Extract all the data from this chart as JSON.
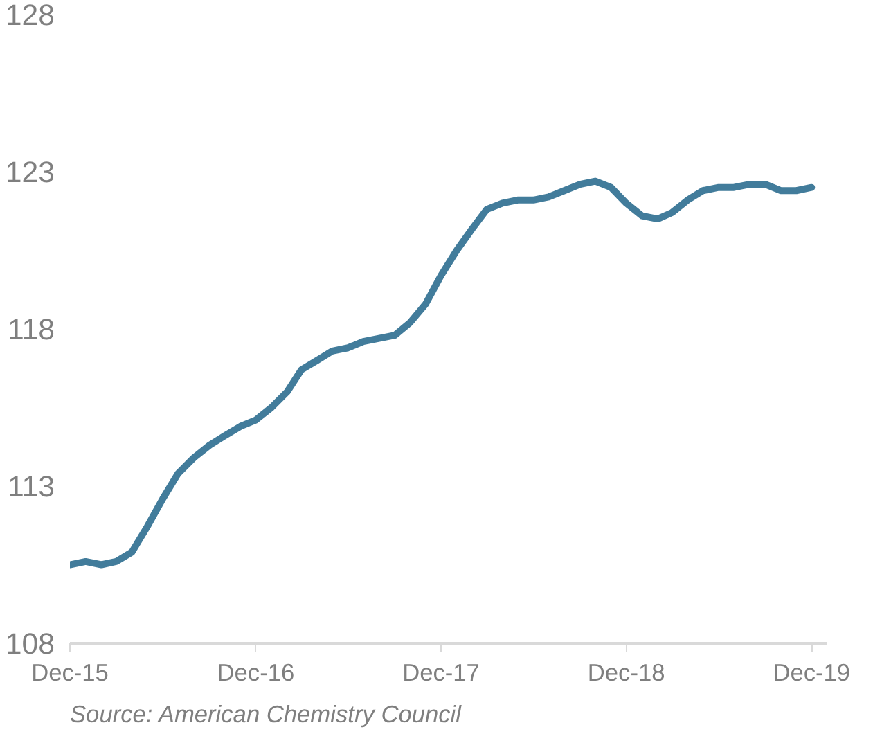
{
  "chart_data": {
    "type": "line",
    "x": [
      "2015-12",
      "2016-01",
      "2016-02",
      "2016-03",
      "2016-04",
      "2016-05",
      "2016-06",
      "2016-07",
      "2016-08",
      "2016-09",
      "2016-10",
      "2016-11",
      "2016-12",
      "2017-01",
      "2017-02",
      "2017-03",
      "2017-04",
      "2017-05",
      "2017-06",
      "2017-07",
      "2017-08",
      "2017-09",
      "2017-10",
      "2017-11",
      "2017-12",
      "2018-01",
      "2018-02",
      "2018-03",
      "2018-04",
      "2018-05",
      "2018-06",
      "2018-07",
      "2018-08",
      "2018-09",
      "2018-10",
      "2018-11",
      "2018-12",
      "2019-01",
      "2019-02",
      "2019-03",
      "2019-04",
      "2019-05",
      "2019-06",
      "2019-07",
      "2019-08",
      "2019-09",
      "2019-10",
      "2019-11",
      "2019-12"
    ],
    "series": [
      {
        "color": "#427c9b",
        "values": [
          110.5,
          110.6,
          110.5,
          110.6,
          110.9,
          111.7,
          112.6,
          113.4,
          113.9,
          114.3,
          114.6,
          114.9,
          115.1,
          115.5,
          116.0,
          116.7,
          117.0,
          117.3,
          117.4,
          117.6,
          117.7,
          117.8,
          118.2,
          118.8,
          119.7,
          120.5,
          121.2,
          121.8,
          122.0,
          122.1,
          122.1,
          122.2,
          122.4,
          122.6,
          122.7,
          122.5,
          122.0,
          121.6,
          121.5,
          121.7,
          122.1,
          122.4,
          122.5,
          122.5,
          122.6,
          122.6,
          122.4,
          122.4,
          122.5
        ]
      }
    ],
    "xlim": [
      "2015-12",
      "2020-01"
    ],
    "xticks": [
      {
        "value": "2015-12",
        "label": "Dec-15"
      },
      {
        "value": "2016-12",
        "label": "Dec-16"
      },
      {
        "value": "2017-12",
        "label": "Dec-17"
      },
      {
        "value": "2018-12",
        "label": "Dec-18"
      },
      {
        "value": "2019-12",
        "label": "Dec-19"
      }
    ],
    "ylim": [
      108,
      128
    ],
    "yticks": [
      108,
      113,
      118,
      123,
      128
    ],
    "annotations": [
      "Source: American Chemistry Council"
    ]
  }
}
